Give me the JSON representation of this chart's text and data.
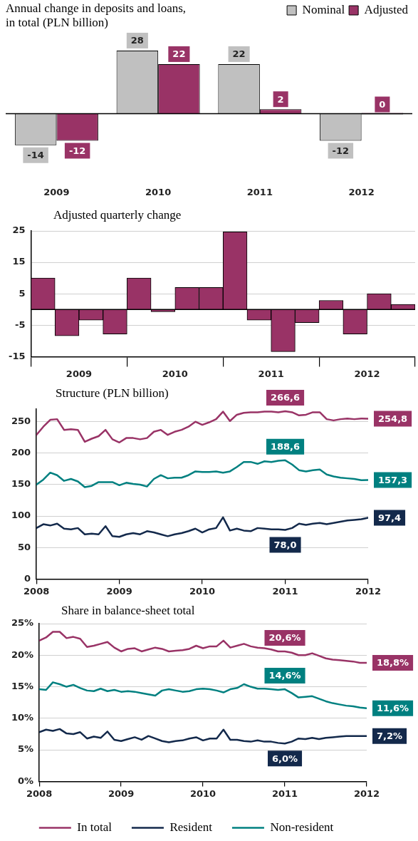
{
  "chart_data": [
    {
      "type": "bar",
      "title": "Annual change in deposits and loans, in total (PLN billion)",
      "categories": [
        "2009",
        "2010",
        "2011",
        "2012"
      ],
      "series": [
        {
          "name": "Nominal",
          "color": "#c0c0c0",
          "values": [
            -14,
            28,
            22,
            -12
          ]
        },
        {
          "name": "Adjusted",
          "color": "#993366",
          "values": [
            -12,
            22,
            2,
            0
          ]
        }
      ],
      "data_labels": true,
      "legend": "top right",
      "tick_labels": "x",
      "ref_lines": [
        {
          "axis": "y",
          "value": 0
        }
      ]
    },
    {
      "type": "bar",
      "title": "Adjusted quarterly change",
      "x": [
        2009.125,
        2009.375,
        2009.625,
        2009.875,
        2010.125,
        2010.375,
        2010.625,
        2010.875,
        2011.125,
        2011.375,
        2011.625,
        2011.875,
        2012.125,
        2012.375,
        2012.625,
        2012.875
      ],
      "values": [
        10,
        -8.4,
        -3.4,
        -7.8,
        10,
        -0.7,
        7,
        7,
        24.7,
        -3.4,
        -13.4,
        -4.2,
        2.9,
        -7.8,
        5,
        1.6
      ],
      "color": "#993366",
      "xlim": [
        2009,
        2013
      ],
      "xticks": [
        {
          "value": 2009.5,
          "label": "2009"
        },
        {
          "value": 2010.5,
          "label": "2010"
        },
        {
          "value": 2011.5,
          "label": "2011"
        },
        {
          "value": 2012.5,
          "label": "2012"
        }
      ],
      "ylim": [
        -15,
        25
      ],
      "yticks": [
        -15,
        -5,
        5,
        15,
        25
      ],
      "grid": "y",
      "ref_lines": [
        {
          "axis": "y",
          "value": 0
        }
      ]
    },
    {
      "type": "line",
      "title": "Structure (PLN billion)",
      "x": [
        "2008-01",
        "2008-02",
        "2008-03",
        "2008-04",
        "2008-05",
        "2008-06",
        "2008-07",
        "2008-08",
        "2008-09",
        "2008-10",
        "2008-11",
        "2008-12",
        "2009-01",
        "2009-02",
        "2009-03",
        "2009-04",
        "2009-05",
        "2009-06",
        "2009-07",
        "2009-08",
        "2009-09",
        "2009-10",
        "2009-11",
        "2009-12",
        "2010-01",
        "2010-02",
        "2010-03",
        "2010-04",
        "2010-05",
        "2010-06",
        "2010-07",
        "2010-08",
        "2010-09",
        "2010-10",
        "2010-11",
        "2010-12",
        "2011-01",
        "2011-02",
        "2011-03",
        "2011-04",
        "2011-05",
        "2011-06",
        "2011-07",
        "2011-08",
        "2011-09",
        "2011-10",
        "2011-11",
        "2011-12",
        "2012-01"
      ],
      "series": [
        {
          "color": "#993366",
          "values": [
            229,
            242,
            253,
            254,
            237,
            238,
            237,
            218,
            223,
            227,
            237,
            222,
            217,
            224,
            224,
            222,
            224,
            234,
            237,
            229,
            234,
            237,
            242,
            250,
            245,
            249,
            254,
            266,
            251,
            261,
            264,
            265,
            265,
            266,
            266,
            265,
            266.6,
            265,
            260,
            261,
            265,
            265,
            254,
            252,
            254,
            255,
            254,
            255,
            254.8
          ]
        },
        {
          "color": "#13294b",
          "values": [
            81,
            87,
            85,
            88,
            80,
            79,
            81,
            71,
            72,
            71,
            84,
            68,
            67,
            71,
            73,
            71,
            76,
            74,
            71,
            68,
            71,
            73,
            76,
            80,
            74,
            79,
            81,
            98,
            77,
            80,
            77,
            76,
            81,
            80,
            79,
            79,
            78,
            81,
            88,
            86,
            88,
            89,
            87,
            89,
            91,
            93,
            94,
            95,
            97.4
          ]
        },
        {
          "color": "#008080",
          "values": [
            150,
            158,
            169,
            165,
            156,
            159,
            155,
            146,
            148,
            154,
            154,
            154,
            149,
            153,
            151,
            150,
            147,
            159,
            165,
            160,
            161,
            161,
            165,
            171,
            170,
            170,
            171,
            169,
            171,
            178,
            186,
            186,
            183,
            187,
            186,
            188,
            188.6,
            182,
            173,
            171,
            173,
            174,
            166,
            163,
            161,
            160,
            159,
            157,
            157.3
          ]
        }
      ],
      "xlim": [
        "2008-01",
        "2012-01"
      ],
      "xticks": [
        "2008",
        "2009",
        "2010",
        "2011",
        "2012"
      ],
      "ylim": [
        0,
        270
      ],
      "yticks": [
        0,
        50,
        100,
        150,
        200,
        250
      ],
      "grid": "y",
      "annotations": [
        {
          "text": "266,6",
          "x": "2011-01",
          "y": 266.6
        },
        {
          "text": "188,6",
          "x": "2011-01",
          "y": 188.6
        },
        {
          "text": "78,0",
          "x": "2011-01",
          "y": 78
        },
        {
          "text": "254,8",
          "x": "2012-01",
          "y": 254.8
        },
        {
          "text": "157,3",
          "x": "2012-01",
          "y": 157.3
        },
        {
          "text": "97,4",
          "x": "2012-01",
          "y": 97.4
        }
      ]
    },
    {
      "type": "line",
      "title": "Share in balance-sheet total",
      "x": [
        "2008-01",
        "2008-02",
        "2008-03",
        "2008-04",
        "2008-05",
        "2008-06",
        "2008-07",
        "2008-08",
        "2008-09",
        "2008-10",
        "2008-11",
        "2008-12",
        "2009-01",
        "2009-02",
        "2009-03",
        "2009-04",
        "2009-05",
        "2009-06",
        "2009-07",
        "2009-08",
        "2009-09",
        "2009-10",
        "2009-11",
        "2009-12",
        "2010-01",
        "2010-02",
        "2010-03",
        "2010-04",
        "2010-05",
        "2010-06",
        "2010-07",
        "2010-08",
        "2010-09",
        "2010-10",
        "2010-11",
        "2010-12",
        "2011-01",
        "2011-02",
        "2011-03",
        "2011-04",
        "2011-05",
        "2011-06",
        "2011-07",
        "2011-08",
        "2011-09",
        "2011-10",
        "2011-11",
        "2011-12",
        "2012-01"
      ],
      "series": [
        {
          "name": "In total",
          "color": "#993366",
          "values": [
            22.3,
            22.8,
            23.7,
            23.7,
            22.7,
            22.9,
            22.6,
            21.3,
            21.5,
            21.8,
            22.1,
            21.2,
            20.6,
            21.0,
            21.1,
            20.6,
            20.9,
            21.2,
            21.0,
            20.6,
            20.7,
            20.8,
            21.0,
            21.5,
            21.1,
            21.4,
            21.4,
            22.3,
            21.2,
            21.5,
            21.8,
            21.4,
            21.2,
            21.1,
            20.9,
            20.6,
            20.6,
            20.4,
            20.0,
            20.0,
            20.3,
            19.9,
            19.5,
            19.3,
            19.2,
            19.1,
            19.0,
            18.8,
            18.8
          ]
        },
        {
          "name": "Resident",
          "color": "#13294b",
          "values": [
            7.8,
            8.2,
            8.0,
            8.3,
            7.6,
            7.5,
            7.8,
            6.8,
            7.1,
            6.9,
            7.9,
            6.6,
            6.4,
            6.7,
            7.0,
            6.6,
            7.2,
            6.8,
            6.4,
            6.2,
            6.4,
            6.5,
            6.8,
            7.0,
            6.5,
            6.8,
            6.8,
            8.2,
            6.6,
            6.6,
            6.4,
            6.3,
            6.5,
            6.3,
            6.3,
            6.1,
            6.0,
            6.3,
            6.8,
            6.7,
            6.9,
            6.7,
            6.9,
            7.0,
            7.1,
            7.2,
            7.2,
            7.2,
            7.2
          ]
        },
        {
          "name": "Non-resident",
          "color": "#008080",
          "values": [
            14.6,
            14.5,
            15.7,
            15.4,
            15.0,
            15.3,
            14.8,
            14.4,
            14.3,
            14.7,
            14.3,
            14.5,
            14.2,
            14.3,
            14.2,
            14.0,
            13.8,
            13.6,
            14.4,
            14.6,
            14.4,
            14.2,
            14.3,
            14.6,
            14.7,
            14.6,
            14.4,
            14.1,
            14.6,
            14.8,
            15.4,
            15.0,
            14.7,
            14.7,
            14.6,
            14.5,
            14.6,
            14.0,
            13.3,
            13.4,
            13.5,
            13.1,
            12.7,
            12.4,
            12.2,
            12.0,
            11.9,
            11.7,
            11.6
          ]
        }
      ],
      "xlim": [
        "2008-01",
        "2012-01"
      ],
      "xticks": [
        "2008",
        "2009",
        "2010",
        "2011",
        "2012"
      ],
      "ylim": [
        0,
        25
      ],
      "yticks": [
        {
          "value": 0,
          "label": "0%"
        },
        {
          "value": 5,
          "label": "5%"
        },
        {
          "value": 10,
          "label": "10%"
        },
        {
          "value": 15,
          "label": "15%"
        },
        {
          "value": 20,
          "label": "20%"
        },
        {
          "value": 25,
          "label": "25%"
        }
      ],
      "grid": "y",
      "legend": "bottom",
      "annotations": [
        {
          "text": "20,6%",
          "x": "2011-01",
          "y": 20.6
        },
        {
          "text": "14,6%",
          "x": "2011-01",
          "y": 14.6
        },
        {
          "text": "6,0%",
          "x": "2011-01",
          "y": 6.0
        },
        {
          "text": "18,8%",
          "x": "2012-01",
          "y": 18.8
        },
        {
          "text": "11,6%",
          "x": "2012-01",
          "y": 11.6
        },
        {
          "text": "7,2%",
          "x": "2012-01",
          "y": 7.2
        }
      ]
    }
  ]
}
